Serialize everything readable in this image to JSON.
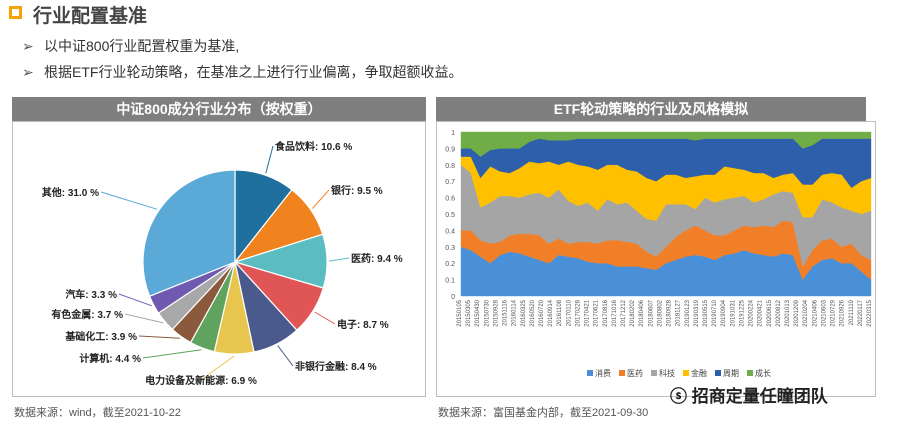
{
  "header": {
    "title": "行业配置基准",
    "bullets": [
      "以中证800行业配置权重为基准,",
      "根据ETF行业轮动策略，在基准之上进行行业偏离，争取超额收益。"
    ]
  },
  "left_panel": {
    "title": "中证800成分行业分布（按权重）",
    "source": "数据来源：wind，截至2021-10-22"
  },
  "right_panel": {
    "title": "ETF轮动策略的行业及风格模拟",
    "source": "数据来源：富国基金内部，截至2021-09-30"
  },
  "watermark": "招商定量任瞳团队",
  "colors": {
    "slices": [
      "#1f6f9f",
      "#f0831e",
      "#5bbcc2",
      "#e05656",
      "#4a5a8c",
      "#e8c54e",
      "#5fa35f",
      "#8b5a3c",
      "#a8a8a8",
      "#6f5ab0",
      "#5aa9d6"
    ],
    "areas": [
      "#4a90d9",
      "#f07f28",
      "#a5a5a5",
      "#ffc000",
      "#2e5faa",
      "#70ad47"
    ]
  },
  "chart_data": [
    {
      "type": "pie",
      "title": "中证800成分行业分布（按权重）",
      "labels": [
        "食品饮料",
        "银行",
        "医药",
        "电子",
        "非银行金融",
        "电力设备及新能源",
        "计算机",
        "基础化工",
        "有色金属",
        "汽车",
        "其他"
      ],
      "values": [
        10.6,
        9.5,
        9.4,
        8.7,
        8.4,
        6.9,
        4.4,
        3.9,
        3.7,
        3.3,
        31.0
      ],
      "display": [
        "食品饮料: 10.6 %",
        "银行: 9.5 %",
        "医药: 9.4 %",
        "电子: 8.7 %",
        "非银行金融: 8.4 %",
        "电力设备及新能源: 6.9 %",
        "计算机: 4.4 %",
        "基础化工: 3.9 %",
        "有色金属: 3.7 %",
        "汽车: 3.3 %",
        "其他: 31.0 %"
      ]
    },
    {
      "type": "area",
      "title": "ETF轮动策略的行业及风格模拟",
      "y_ticks": [
        "0",
        "0.1",
        "0.2",
        "0.3",
        "0.4",
        "0.5",
        "0.6",
        "0.7",
        "0.8",
        "0.9",
        "1"
      ],
      "ylim": [
        0,
        1
      ],
      "x_ticks": [
        "20150105",
        "20150305",
        "20150430",
        "20150730",
        "20150928",
        "20151116",
        "20160114",
        "20160325",
        "20160520",
        "20160720",
        "20160914",
        "20161108",
        "20170110",
        "20170228",
        "20170421",
        "20170621",
        "20170816",
        "20171016",
        "20171212",
        "20180202",
        "20180406",
        "20180607",
        "20180802",
        "20180928",
        "20181127",
        "20190123",
        "20190319",
        "20190515",
        "20190710",
        "20190904",
        "20191031",
        "20191225",
        "20200224",
        "20200421",
        "20200615",
        "20200812",
        "20201013",
        "20201209",
        "20210204",
        "20210406",
        "20210603",
        "20210729",
        "20210926",
        "20211119",
        "20220117",
        "20220315"
      ],
      "legend": [
        "消费",
        "医药",
        "科技",
        "金融",
        "周期",
        "成长"
      ],
      "series": [
        {
          "name": "消费",
          "values": [
            0.3,
            0.28,
            0.24,
            0.2,
            0.25,
            0.27,
            0.26,
            0.24,
            0.22,
            0.2,
            0.25,
            0.24,
            0.23,
            0.21,
            0.2,
            0.2,
            0.18,
            0.18,
            0.18,
            0.17,
            0.16,
            0.2,
            0.22,
            0.24,
            0.25,
            0.24,
            0.22,
            0.25,
            0.26,
            0.28,
            0.26,
            0.25,
            0.24,
            0.26,
            0.25,
            0.1,
            0.18,
            0.22,
            0.23,
            0.2,
            0.2,
            0.15,
            0.1
          ]
        },
        {
          "name": "医药",
          "values": [
            0.1,
            0.12,
            0.1,
            0.12,
            0.08,
            0.1,
            0.12,
            0.14,
            0.15,
            0.12,
            0.1,
            0.08,
            0.1,
            0.12,
            0.12,
            0.14,
            0.16,
            0.15,
            0.14,
            0.1,
            0.08,
            0.1,
            0.14,
            0.16,
            0.18,
            0.16,
            0.15,
            0.12,
            0.14,
            0.15,
            0.16,
            0.18,
            0.18,
            0.2,
            0.2,
            0.08,
            0.1,
            0.12,
            0.12,
            0.1,
            0.12,
            0.1,
            0.12
          ]
        },
        {
          "name": "科技",
          "values": [
            0.4,
            0.35,
            0.2,
            0.25,
            0.28,
            0.24,
            0.22,
            0.24,
            0.26,
            0.28,
            0.3,
            0.26,
            0.22,
            0.24,
            0.2,
            0.25,
            0.22,
            0.24,
            0.2,
            0.2,
            0.22,
            0.26,
            0.2,
            0.16,
            0.1,
            0.2,
            0.2,
            0.22,
            0.2,
            0.18,
            0.15,
            0.16,
            0.2,
            0.18,
            0.18,
            0.3,
            0.2,
            0.25,
            0.22,
            0.24,
            0.2,
            0.25,
            0.3
          ]
        },
        {
          "name": "金融",
          "values": [
            0.05,
            0.1,
            0.18,
            0.22,
            0.15,
            0.14,
            0.18,
            0.2,
            0.18,
            0.22,
            0.15,
            0.24,
            0.25,
            0.22,
            0.25,
            0.21,
            0.24,
            0.2,
            0.24,
            0.25,
            0.24,
            0.18,
            0.18,
            0.16,
            0.2,
            0.14,
            0.17,
            0.2,
            0.18,
            0.16,
            0.18,
            0.16,
            0.1,
            0.1,
            0.12,
            0.2,
            0.2,
            0.15,
            0.18,
            0.2,
            0.14,
            0.2,
            0.2
          ]
        },
        {
          "name": "周期",
          "values": [
            0.05,
            0.05,
            0.13,
            0.1,
            0.14,
            0.15,
            0.12,
            0.12,
            0.15,
            0.13,
            0.15,
            0.13,
            0.16,
            0.17,
            0.19,
            0.16,
            0.16,
            0.19,
            0.2,
            0.24,
            0.26,
            0.22,
            0.22,
            0.24,
            0.22,
            0.22,
            0.22,
            0.17,
            0.18,
            0.19,
            0.21,
            0.21,
            0.24,
            0.22,
            0.21,
            0.22,
            0.24,
            0.22,
            0.21,
            0.22,
            0.3,
            0.26,
            0.24
          ]
        },
        {
          "name": "成长",
          "values": [
            0.1,
            0.1,
            0.15,
            0.11,
            0.1,
            0.1,
            0.1,
            0.06,
            0.04,
            0.05,
            0.05,
            0.05,
            0.04,
            0.04,
            0.04,
            0.04,
            0.04,
            0.04,
            0.04,
            0.04,
            0.04,
            0.04,
            0.04,
            0.04,
            0.05,
            0.04,
            0.04,
            0.04,
            0.04,
            0.04,
            0.04,
            0.04,
            0.04,
            0.04,
            0.04,
            0.1,
            0.08,
            0.04,
            0.04,
            0.04,
            0.04,
            0.04,
            0.04
          ]
        }
      ]
    }
  ]
}
